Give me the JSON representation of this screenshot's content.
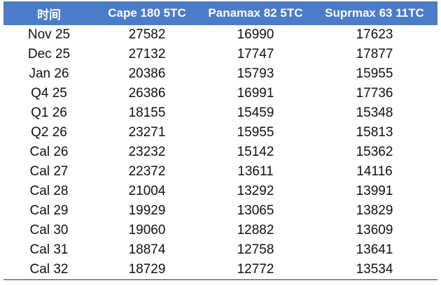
{
  "table": {
    "header": [
      "时间",
      "Cape 180 5TC",
      "Panamax 82 5TC",
      "Suprmax 63 11TC"
    ],
    "rows": [
      [
        "Nov 25",
        27582,
        16990,
        17623
      ],
      [
        "Dec 25",
        27132,
        17747,
        17877
      ],
      [
        "Jan 26",
        20386,
        15793,
        15955
      ],
      [
        "Q4 25",
        26386,
        16991,
        17736
      ],
      [
        "Q1 26",
        18155,
        15459,
        15348
      ],
      [
        "Q2 26",
        23271,
        15955,
        15813
      ],
      [
        "Cal 26",
        23232,
        15142,
        15362
      ],
      [
        "Cal 27",
        22372,
        13611,
        14116
      ],
      [
        "Cal 28",
        21004,
        13292,
        13991
      ],
      [
        "Cal 29",
        19929,
        13065,
        13829
      ],
      [
        "Cal 30",
        19060,
        12882,
        13609
      ],
      [
        "Cal 31",
        18874,
        12758,
        13641
      ],
      [
        "Cal 32",
        18729,
        12772,
        13534
      ]
    ]
  }
}
